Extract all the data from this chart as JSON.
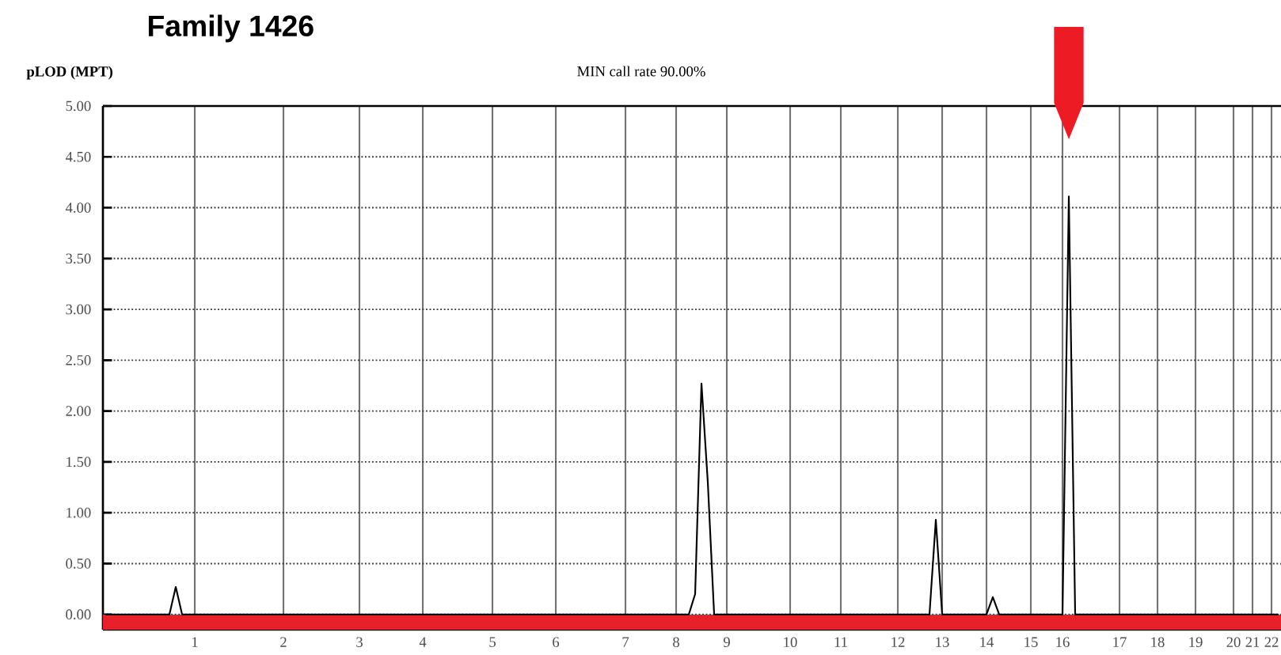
{
  "chart_data": {
    "type": "line",
    "title": "Family 1426",
    "subtitle": "MIN call rate 90.00%",
    "ylabel": "pLOD (MPT)",
    "categories": [
      null,
      null,
      null,
      null,
      null,
      null,
      null,
      null,
      null,
      null,
      null,
      null,
      null,
      null,
      "1",
      null,
      null,
      null,
      null,
      null,
      null,
      null,
      null,
      null,
      null,
      null,
      null,
      null,
      "2",
      null,
      null,
      null,
      null,
      null,
      null,
      null,
      null,
      null,
      null,
      null,
      "3",
      null,
      null,
      null,
      null,
      null,
      null,
      null,
      null,
      null,
      "4",
      null,
      null,
      null,
      null,
      null,
      null,
      null,
      null,
      null,
      null,
      "5",
      null,
      null,
      null,
      null,
      null,
      null,
      null,
      null,
      null,
      "6",
      null,
      null,
      null,
      null,
      null,
      null,
      null,
      null,
      null,
      null,
      "7",
      null,
      null,
      null,
      null,
      null,
      null,
      null,
      "8",
      null,
      null,
      null,
      null,
      null,
      null,
      null,
      "9",
      null,
      null,
      null,
      null,
      null,
      null,
      null,
      null,
      null,
      "10",
      null,
      null,
      null,
      null,
      null,
      null,
      null,
      "11",
      null,
      null,
      null,
      null,
      null,
      null,
      null,
      null,
      "12",
      null,
      null,
      null,
      null,
      null,
      null,
      "13",
      null,
      null,
      null,
      null,
      null,
      null,
      "14",
      null,
      null,
      null,
      null,
      null,
      null,
      "15",
      null,
      null,
      null,
      null,
      "16",
      null,
      null,
      null,
      null,
      null,
      null,
      null,
      null,
      "17",
      null,
      null,
      null,
      null,
      null,
      "18",
      null,
      null,
      null,
      null,
      null,
      "19",
      null,
      null,
      null,
      null,
      null,
      "20",
      null,
      null,
      "21",
      null,
      null,
      "22",
      null
    ],
    "series": [
      {
        "color": "#000000",
        "values": [
          0,
          0,
          0,
          0,
          0,
          0,
          0,
          0,
          0,
          0,
          0,
          0.27,
          0,
          0,
          0,
          0,
          0,
          0,
          0,
          0,
          0,
          0,
          0,
          0,
          0,
          0,
          0,
          0,
          0,
          0,
          0,
          0,
          0,
          0,
          0,
          0,
          0,
          0,
          0,
          0,
          0,
          0,
          0,
          0,
          0,
          0,
          0,
          0,
          0,
          0,
          0,
          0,
          0,
          0,
          0,
          0,
          0,
          0,
          0,
          0,
          0,
          0,
          0,
          0,
          0,
          0,
          0,
          0,
          0,
          0,
          0,
          0,
          0,
          0,
          0,
          0,
          0,
          0,
          0,
          0,
          0,
          0,
          0,
          0,
          0,
          0,
          0,
          0,
          0,
          0,
          0,
          0,
          0,
          0.2,
          2.27,
          1.3,
          0,
          0,
          0,
          0,
          0,
          0,
          0,
          0,
          0,
          0,
          0,
          0,
          0,
          0,
          0,
          0,
          0,
          0,
          0,
          0,
          0,
          0,
          0,
          0,
          0,
          0,
          0,
          0,
          0,
          0,
          0,
          0,
          0,
          0,
          0,
          0.93,
          0,
          0,
          0,
          0,
          0,
          0,
          0,
          0,
          0.17,
          0,
          0,
          0,
          0,
          0,
          0,
          0,
          0,
          0,
          0,
          0,
          4.11,
          0,
          0,
          0,
          0,
          0,
          0,
          0,
          0,
          0,
          0,
          0,
          0,
          0,
          0,
          0,
          0,
          0,
          0,
          0,
          0,
          0,
          0,
          0,
          0,
          0,
          0,
          0,
          0,
          0,
          0,
          0,
          0,
          0
        ]
      }
    ],
    "ylim": [
      -0.15,
      5
    ],
    "yticks": [
      {
        "value": 0,
        "label": "0.00"
      },
      {
        "value": 0.5,
        "label": "0.50"
      },
      {
        "value": 1,
        "label": "1.00"
      },
      {
        "value": 1.5,
        "label": "1.50"
      },
      {
        "value": 2,
        "label": "2.00"
      },
      {
        "value": 2.5,
        "label": "2.50"
      },
      {
        "value": 3,
        "label": "3.00"
      },
      {
        "value": 3.5,
        "label": "3.50"
      },
      {
        "value": 4,
        "label": "4.00"
      },
      {
        "value": 4.5,
        "label": "4.50"
      },
      {
        "value": 5,
        "label": "5.00"
      }
    ],
    "bands": [
      {
        "axis": "y",
        "from": -0.15,
        "to": 0,
        "color": "#e8202a"
      }
    ],
    "grid": true,
    "marker": "none",
    "line_style": "solid"
  }
}
